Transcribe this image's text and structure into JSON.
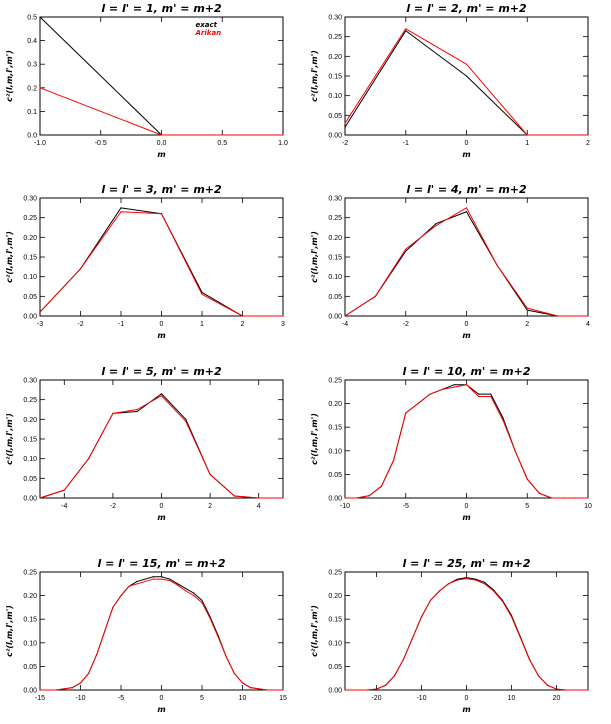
{
  "colors": {
    "axes": "#000000",
    "background": "#ffffff"
  },
  "chart_data": [
    {
      "type": "line",
      "title": "l = l' = 1,  m' = m+2",
      "xlabel": "m",
      "ylabel": "c²(l,m,l',m')",
      "xlim": [
        -1.0,
        1.0
      ],
      "ylim": [
        0,
        0.5
      ],
      "xticks": [
        -1.0,
        -0.5,
        0.0,
        0.5,
        1.0
      ],
      "xtick_labels": [
        "-1.0",
        "-0.5",
        "0.0",
        "0.5",
        "1.0"
      ],
      "yticks": [
        0.0,
        0.1,
        0.2,
        0.3,
        0.4,
        0.5
      ],
      "ytick_labels": [
        "0.0",
        "0.1",
        "0.2",
        "0.3",
        "0.4",
        "0.5"
      ],
      "legend": {
        "position": "top-right",
        "entries": [
          "exact",
          "Arikan"
        ]
      },
      "series": [
        {
          "name": "exact",
          "color": "#000000",
          "x": [
            -1,
            0,
            1
          ],
          "y": [
            0.5,
            0.0,
            0.0
          ]
        },
        {
          "name": "Arikan",
          "color": "#ff0000",
          "x": [
            -1,
            0,
            1
          ],
          "y": [
            0.2,
            0.0,
            0.0
          ]
        }
      ]
    },
    {
      "type": "line",
      "title": "l = l' = 2,  m' = m+2",
      "xlabel": "m",
      "ylabel": "c²(l,m,l',m')",
      "xlim": [
        -2,
        2
      ],
      "ylim": [
        0,
        0.3
      ],
      "xticks": [
        -2,
        -1,
        0,
        1,
        2
      ],
      "xtick_labels": [
        "-2",
        "-1",
        "0",
        "1",
        "2"
      ],
      "yticks": [
        0.0,
        0.05,
        0.1,
        0.15,
        0.2,
        0.25,
        0.3
      ],
      "ytick_labels": [
        "0.00",
        "0.05",
        "0.10",
        "0.15",
        "0.20",
        "0.25",
        "0.30"
      ],
      "series": [
        {
          "color": "#000000",
          "x": [
            -2,
            -1,
            0,
            1,
            2
          ],
          "y": [
            0.02,
            0.265,
            0.15,
            0.0,
            0.0
          ]
        },
        {
          "color": "#ff0000",
          "x": [
            -2,
            -1,
            0,
            1,
            2
          ],
          "y": [
            0.03,
            0.27,
            0.18,
            0.0,
            0.0
          ]
        }
      ]
    },
    {
      "type": "line",
      "title": "l = l' = 3,  m' = m+2",
      "xlabel": "m",
      "ylabel": "c²(l,m,l',m')",
      "xlim": [
        -3,
        3
      ],
      "ylim": [
        0,
        0.3
      ],
      "xticks": [
        -3,
        -2,
        -1,
        0,
        1,
        2,
        3
      ],
      "xtick_labels": [
        "-3",
        "-2",
        "-1",
        "0",
        "1",
        "2",
        "3"
      ],
      "yticks": [
        0.0,
        0.05,
        0.1,
        0.15,
        0.2,
        0.25,
        0.3
      ],
      "ytick_labels": [
        "0.00",
        "0.05",
        "0.10",
        "0.15",
        "0.20",
        "0.25",
        "0.30"
      ],
      "series": [
        {
          "color": "#000000",
          "x": [
            -3,
            -2,
            -1,
            0,
            1,
            2,
            3
          ],
          "y": [
            0.01,
            0.12,
            0.275,
            0.26,
            0.06,
            0.0,
            0.0
          ]
        },
        {
          "color": "#ff0000",
          "x": [
            -3,
            -2,
            -1,
            0,
            1,
            2,
            3
          ],
          "y": [
            0.01,
            0.12,
            0.265,
            0.26,
            0.055,
            0.0,
            0.0
          ]
        }
      ]
    },
    {
      "type": "line",
      "title": "l = l' = 4,  m' = m+2",
      "xlabel": "m",
      "ylabel": "c²(l,m,l',m')",
      "xlim": [
        -4,
        4
      ],
      "ylim": [
        0,
        0.3
      ],
      "xticks": [
        -4,
        -2,
        0,
        2,
        4
      ],
      "xtick_labels": [
        "-4",
        "-2",
        "0",
        "2",
        "4"
      ],
      "yticks": [
        0.0,
        0.05,
        0.1,
        0.15,
        0.2,
        0.25,
        0.3
      ],
      "ytick_labels": [
        "0.00",
        "0.05",
        "0.10",
        "0.15",
        "0.20",
        "0.25",
        "0.30"
      ],
      "series": [
        {
          "color": "#000000",
          "x": [
            -4,
            -3,
            -2,
            -1,
            0,
            1,
            2,
            3,
            4
          ],
          "y": [
            0.0,
            0.05,
            0.165,
            0.235,
            0.265,
            0.13,
            0.015,
            0.0,
            0.0
          ]
        },
        {
          "color": "#ff0000",
          "x": [
            -4,
            -3,
            -2,
            -1,
            0,
            1,
            2,
            3,
            4
          ],
          "y": [
            0.0,
            0.05,
            0.17,
            0.23,
            0.275,
            0.13,
            0.02,
            0.0,
            0.0
          ]
        }
      ]
    },
    {
      "type": "line",
      "title": "l = l' = 5,  m' = m+2",
      "xlabel": "m",
      "ylabel": "c²(l,m,l',m')",
      "xlim": [
        -5,
        5
      ],
      "ylim": [
        0,
        0.3
      ],
      "xticks": [
        -4,
        -2,
        0,
        2,
        4
      ],
      "xtick_labels": [
        "-4",
        "-2",
        "0",
        "2",
        "4"
      ],
      "yticks": [
        0.0,
        0.05,
        0.1,
        0.15,
        0.2,
        0.25,
        0.3
      ],
      "ytick_labels": [
        "0.00",
        "0.05",
        "0.10",
        "0.15",
        "0.20",
        "0.25",
        "0.30"
      ],
      "series": [
        {
          "color": "#000000",
          "x": [
            -5,
            -4,
            -3,
            -2,
            -1,
            0,
            1,
            2,
            3,
            4,
            5
          ],
          "y": [
            0.0,
            0.02,
            0.1,
            0.215,
            0.22,
            0.265,
            0.2,
            0.06,
            0.005,
            0.0,
            0.0
          ]
        },
        {
          "color": "#ff0000",
          "x": [
            -5,
            -4,
            -3,
            -2,
            -1,
            0,
            1,
            2,
            3,
            4,
            5
          ],
          "y": [
            0.0,
            0.02,
            0.1,
            0.215,
            0.225,
            0.26,
            0.195,
            0.06,
            0.005,
            0.0,
            0.0
          ]
        }
      ]
    },
    {
      "type": "line",
      "title": "l = l' = 10,  m' = m+2",
      "xlabel": "m",
      "ylabel": "c²(l,m,l',m')",
      "xlim": [
        -10,
        10
      ],
      "ylim": [
        0,
        0.25
      ],
      "xticks": [
        -10,
        -5,
        0,
        5,
        10
      ],
      "xtick_labels": [
        "-10",
        "-5",
        "0",
        "5",
        "10"
      ],
      "yticks": [
        0.0,
        0.05,
        0.1,
        0.15,
        0.2,
        0.25
      ],
      "ytick_labels": [
        "0.00",
        "0.05",
        "0.10",
        "0.15",
        "0.20",
        "0.25"
      ],
      "series": [
        {
          "color": "#000000",
          "x": [
            -10,
            -9,
            -8,
            -7,
            -6,
            -5,
            -4,
            -3,
            -2,
            -1,
            0,
            1,
            2,
            3,
            4,
            5,
            6,
            7,
            8,
            9,
            10
          ],
          "y": [
            0.0,
            0.0,
            0.005,
            0.025,
            0.08,
            0.18,
            0.2,
            0.22,
            0.23,
            0.24,
            0.24,
            0.22,
            0.22,
            0.17,
            0.1,
            0.04,
            0.01,
            0.0,
            0.0,
            0.0,
            0.0
          ]
        },
        {
          "color": "#ff0000",
          "x": [
            -10,
            -9,
            -8,
            -7,
            -6,
            -5,
            -4,
            -3,
            -2,
            -1,
            0,
            1,
            2,
            3,
            4,
            5,
            6,
            7,
            8,
            9,
            10
          ],
          "y": [
            0.0,
            0.0,
            0.005,
            0.025,
            0.08,
            0.18,
            0.2,
            0.22,
            0.23,
            0.235,
            0.24,
            0.215,
            0.215,
            0.165,
            0.1,
            0.04,
            0.01,
            0.0,
            0.0,
            0.0,
            0.0
          ]
        }
      ]
    },
    {
      "type": "line",
      "title": "l = l' = 15,  m' = m+2",
      "xlabel": "m",
      "ylabel": "c²(l,m,l',m')",
      "xlim": [
        -15,
        15
      ],
      "ylim": [
        0,
        0.25
      ],
      "xticks": [
        -15,
        -10,
        -5,
        0,
        5,
        10,
        15
      ],
      "xtick_labels": [
        "-15",
        "-10",
        "-5",
        "0",
        "5",
        "10",
        "15"
      ],
      "yticks": [
        0.0,
        0.05,
        0.1,
        0.15,
        0.2,
        0.25
      ],
      "ytick_labels": [
        "0.00",
        "0.05",
        "0.10",
        "0.15",
        "0.20",
        "0.25"
      ],
      "series": [
        {
          "color": "#000000",
          "x": [
            -15,
            -13,
            -11,
            -10,
            -9,
            -8,
            -7,
            -6,
            -5,
            -4,
            -3,
            -2,
            -1,
            0,
            1,
            2,
            3,
            4,
            5,
            6,
            7,
            8,
            9,
            10,
            11,
            13,
            15
          ],
          "y": [
            0.0,
            0.0,
            0.005,
            0.015,
            0.035,
            0.075,
            0.125,
            0.175,
            0.2,
            0.22,
            0.23,
            0.235,
            0.24,
            0.24,
            0.235,
            0.225,
            0.215,
            0.205,
            0.19,
            0.155,
            0.115,
            0.07,
            0.035,
            0.015,
            0.005,
            0.0,
            0.0
          ]
        },
        {
          "color": "#ff0000",
          "x": [
            -15,
            -13,
            -11,
            -10,
            -9,
            -8,
            -7,
            -6,
            -5,
            -4,
            -3,
            -2,
            -1,
            0,
            1,
            2,
            3,
            4,
            5,
            6,
            7,
            8,
            9,
            10,
            11,
            13,
            15
          ],
          "y": [
            0.0,
            0.0,
            0.005,
            0.015,
            0.035,
            0.075,
            0.125,
            0.175,
            0.2,
            0.22,
            0.225,
            0.23,
            0.235,
            0.235,
            0.232,
            0.222,
            0.21,
            0.2,
            0.185,
            0.152,
            0.112,
            0.07,
            0.035,
            0.015,
            0.005,
            0.0,
            0.0
          ]
        }
      ]
    },
    {
      "type": "line",
      "title": "l = l' = 25,  m' = m+2",
      "xlabel": "m",
      "ylabel": "c²(l,m,l',m')",
      "xlim": [
        -27,
        27
      ],
      "ylim": [
        0,
        0.25
      ],
      "xticks": [
        -20,
        -10,
        0,
        10,
        20
      ],
      "xtick_labels": [
        "-20",
        "-10",
        "0",
        "10",
        "20"
      ],
      "yticks": [
        0.0,
        0.05,
        0.1,
        0.15,
        0.2,
        0.25
      ],
      "ytick_labels": [
        "0.00",
        "0.05",
        "0.10",
        "0.15",
        "0.20",
        "0.25"
      ],
      "series": [
        {
          "color": "#000000",
          "x": [
            -27,
            -22,
            -20,
            -18,
            -16,
            -14,
            -12,
            -10,
            -8,
            -6,
            -4,
            -2,
            0,
            2,
            4,
            6,
            8,
            10,
            12,
            14,
            16,
            18,
            20,
            22,
            27
          ],
          "y": [
            0.0,
            0.0,
            0.002,
            0.01,
            0.03,
            0.065,
            0.11,
            0.155,
            0.19,
            0.21,
            0.225,
            0.235,
            0.238,
            0.235,
            0.228,
            0.212,
            0.19,
            0.158,
            0.112,
            0.065,
            0.03,
            0.01,
            0.002,
            0.0,
            0.0
          ]
        },
        {
          "color": "#ff0000",
          "x": [
            -27,
            -22,
            -20,
            -18,
            -16,
            -14,
            -12,
            -10,
            -8,
            -6,
            -4,
            -2,
            0,
            2,
            4,
            6,
            8,
            10,
            12,
            14,
            16,
            18,
            20,
            22,
            27
          ],
          "y": [
            0.0,
            0.0,
            0.002,
            0.01,
            0.03,
            0.065,
            0.11,
            0.155,
            0.19,
            0.21,
            0.225,
            0.233,
            0.236,
            0.233,
            0.225,
            0.21,
            0.188,
            0.155,
            0.11,
            0.064,
            0.03,
            0.01,
            0.002,
            0.0,
            0.0
          ]
        }
      ]
    }
  ]
}
